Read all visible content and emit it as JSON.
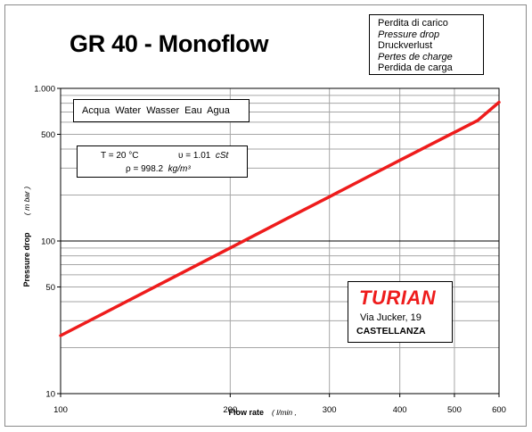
{
  "title": "GR 40 - Monoflow",
  "legend_pressure": [
    "Perdita di carico",
    "Pressure drop",
    "Druckverlust",
    "Pertes de charge",
    "Perdida de carga"
  ],
  "legend_fluid": "Acqua  Water  Wasser  Eau  Agua",
  "fluid_props": {
    "temperature": "T = 20 °C",
    "viscosity_value": "υ = 1.01",
    "viscosity_unit": "cSt",
    "density_value": "ρ = 998.2",
    "density_unit": "kg/m³"
  },
  "company": {
    "name": "TURIAN",
    "street": "Via Jucker, 19",
    "city": "CASTELLANZA"
  },
  "colors": {
    "curve": "#ee1c1c",
    "grid": "#a6a6a6",
    "major_grid": "#000000"
  },
  "chart_data": {
    "type": "line",
    "title": "GR 40 - Monoflow",
    "xlabel": "Flow rate",
    "xunit": "l/min",
    "ylabel": "Pressure drop",
    "yunit": "m bar",
    "xscale": "log",
    "yscale": "log",
    "xlim": [
      100,
      600
    ],
    "ylim": [
      10,
      1000
    ],
    "x_ticks": [
      100,
      200,
      300,
      400,
      500,
      600
    ],
    "x_tick_labels": [
      "100",
      "200",
      "300",
      "400",
      "500",
      "600"
    ],
    "y_ticks": [
      10,
      50,
      100,
      500,
      1000
    ],
    "y_tick_labels": [
      "10",
      "50",
      "100",
      "500",
      "1.000"
    ],
    "grid": true,
    "series": [
      {
        "x": [
          100,
          150,
          200,
          250,
          300,
          350,
          400,
          450,
          500,
          550,
          600
        ],
        "y": [
          24,
          52,
          90,
          138,
          195,
          262,
          338,
          422,
          515,
          617,
          810
        ]
      }
    ]
  }
}
